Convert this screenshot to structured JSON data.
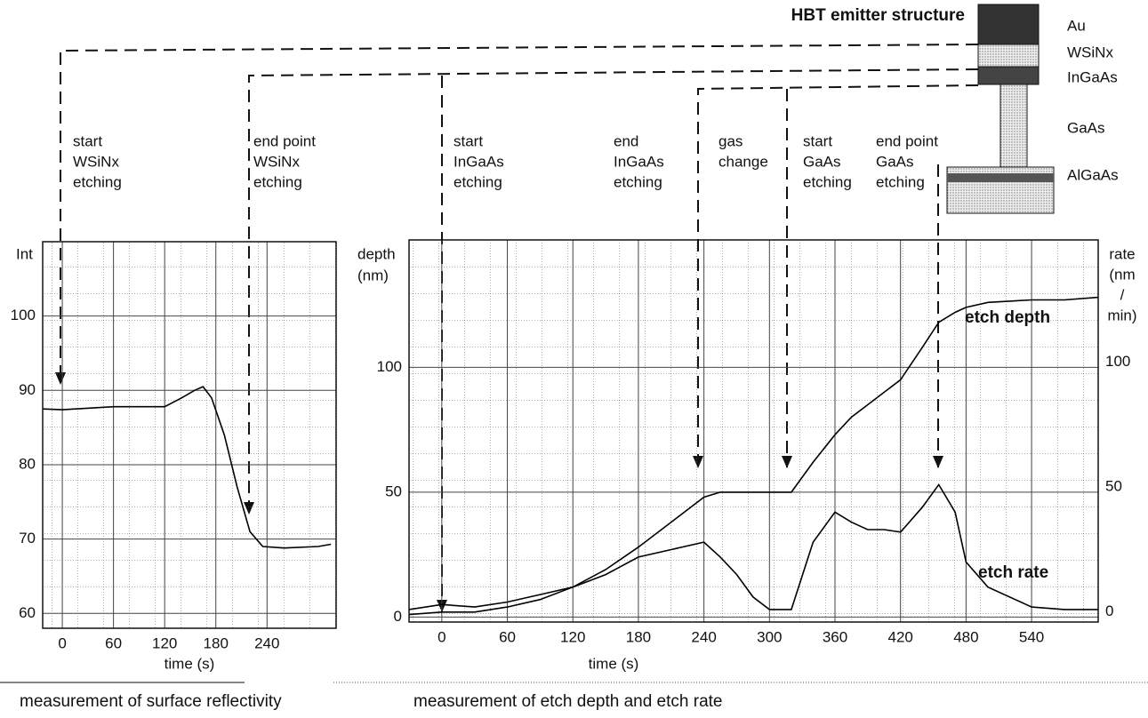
{
  "diagram": {
    "title": "HBT emitter structure",
    "layers": [
      "Au",
      "WSiNx",
      "InGaAs",
      "GaAs",
      "AlGaAs"
    ]
  },
  "annotations": [
    [
      "start",
      "WSiNx",
      "etching"
    ],
    [
      "end point",
      "WSiNx",
      "etching"
    ],
    [
      "start",
      "InGaAs",
      "etching"
    ],
    [
      "end",
      "InGaAs",
      "etching"
    ],
    [
      "gas",
      "change"
    ],
    [
      "start",
      "GaAs",
      "etching"
    ],
    [
      "end point",
      "GaAs",
      "etching"
    ]
  ],
  "chart_data": [
    {
      "type": "line",
      "y_label": [
        "Int"
      ],
      "x_label": "time (s)",
      "caption": "measurement of surface reflectivity",
      "x": [
        -23,
        0,
        60,
        120,
        140,
        155,
        165,
        175,
        190,
        205,
        220,
        235,
        260,
        300,
        315
      ],
      "series": [
        {
          "color": "#000000",
          "values": [
            87.5,
            87.4,
            87.8,
            87.8,
            89,
            90,
            90.5,
            89,
            84,
            77,
            71,
            69,
            68.8,
            69,
            69.3
          ]
        }
      ],
      "xlim": [
        -23,
        321
      ],
      "ylim": [
        58,
        110
      ],
      "xticks": [
        0,
        60,
        120,
        180,
        240
      ],
      "yticks": [
        60,
        70,
        80,
        90,
        100
      ],
      "grid": true
    },
    {
      "type": "line",
      "y_label": [
        "depth",
        "(nm)"
      ],
      "y2_label": [
        "rate",
        "(nm",
        "/",
        "min)"
      ],
      "x_label": "time (s)",
      "caption": "measurement of etch depth and etch rate",
      "x": [
        -30,
        0,
        30,
        60,
        90,
        120,
        150,
        180,
        210,
        240,
        255,
        270,
        285,
        300,
        320,
        340,
        360,
        375,
        390,
        405,
        420,
        440,
        455,
        470,
        480,
        500,
        540,
        570,
        601
      ],
      "series": [
        {
          "name": "etch depth",
          "color": "#000000",
          "values": [
            1,
            2,
            2,
            4,
            7,
            12,
            19,
            28,
            38,
            48,
            50,
            50,
            50,
            50,
            50,
            62,
            73,
            80,
            85,
            90,
            95,
            108,
            118,
            122,
            124,
            126,
            127,
            127,
            128
          ]
        },
        {
          "name": "etch rate",
          "color": "#000000",
          "axis": "y2",
          "values": [
            1,
            3,
            2,
            4,
            7,
            10,
            15,
            22,
            25,
            28,
            22,
            15,
            6,
            1,
            1,
            28,
            40,
            36,
            33,
            33,
            32,
            42,
            51,
            40,
            20,
            10,
            2,
            1,
            1
          ]
        }
      ],
      "xlim": [
        -30,
        601
      ],
      "ylim": [
        -2,
        151
      ],
      "y2lim": [
        -4,
        149
      ],
      "xticks": [
        0,
        60,
        120,
        180,
        240,
        300,
        360,
        420,
        480,
        540
      ],
      "yticks": [
        0,
        50,
        100
      ],
      "y2ticks": [
        0,
        50,
        100
      ],
      "grid": true
    }
  ]
}
